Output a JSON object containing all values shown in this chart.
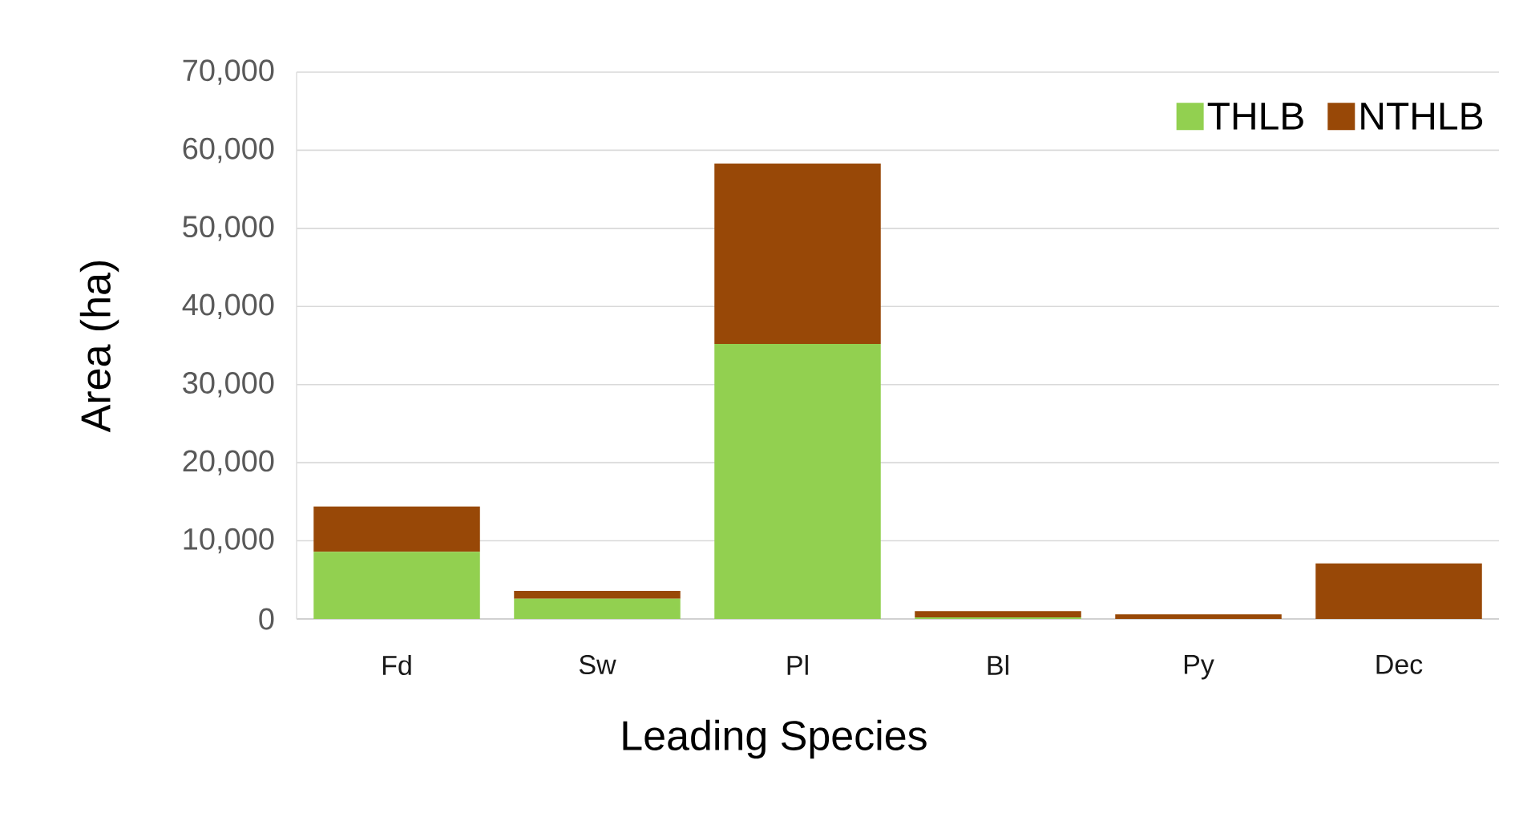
{
  "chart_data": {
    "type": "bar",
    "stacked": true,
    "xlabel": "Leading Species",
    "ylabel": "Area (ha)",
    "categories": [
      "Fd",
      "Sw",
      "Pl",
      "Bl",
      "Py",
      "Dec"
    ],
    "series": [
      {
        "name": "THLB",
        "color": "#92d050",
        "values": [
          8600,
          2600,
          35200,
          200,
          0,
          0
        ]
      },
      {
        "name": "NTHLB",
        "color": "#984807",
        "values": [
          5800,
          1000,
          23100,
          800,
          600,
          7100
        ]
      }
    ],
    "ylim": [
      0,
      70000
    ],
    "yticks": [
      0,
      {
        "value": 10000,
        "label": "10,000"
      },
      {
        "value": 20000,
        "label": "20,000"
      },
      {
        "value": 30000,
        "label": "30,000"
      },
      {
        "value": 40000,
        "label": "40,000"
      },
      {
        "value": 50000,
        "label": "50,000"
      },
      {
        "value": 60000,
        "label": "60,000"
      },
      {
        "value": 70000,
        "label": "70,000"
      }
    ],
    "grid": "y",
    "legend": "top right"
  }
}
